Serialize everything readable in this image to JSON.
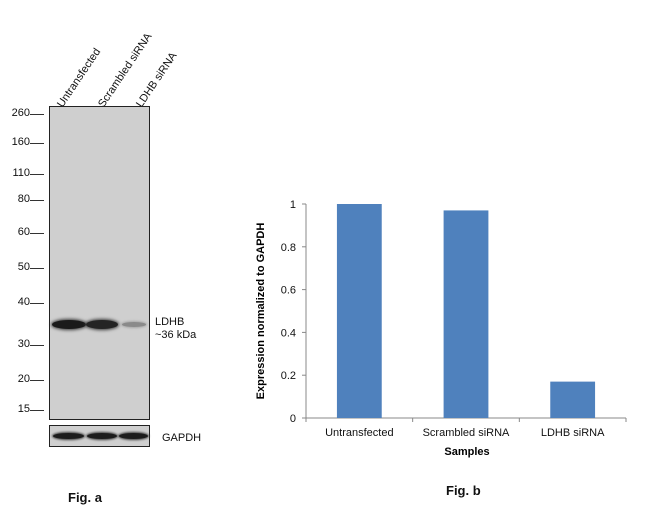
{
  "fig_a": {
    "caption": "Fig. a",
    "lanes": [
      "Untransfected",
      "Scrambled siRNA",
      "LDHB siRNA"
    ],
    "mw_markers": [
      "260",
      "160",
      "110",
      "80",
      "60",
      "50",
      "40",
      "30",
      "20",
      "15"
    ],
    "band_label_line1": "LDHB",
    "band_label_line2": "~36 kDa",
    "loading_control": "GAPDH",
    "band_intensity": [
      1.0,
      0.97,
      0.4
    ]
  },
  "fig_b": {
    "caption": "Fig. b"
  },
  "chart_data": {
    "type": "bar",
    "categories": [
      "Untransfected",
      "Scrambled siRNA",
      "LDHB siRNA"
    ],
    "values": [
      1.0,
      0.97,
      0.17
    ],
    "xlabel": "Samples",
    "ylabel": "Expression normalized to GAPDH",
    "ylim": [
      0,
      1
    ],
    "yticks": [
      "0",
      "0.2",
      "0.4",
      "0.6",
      "0.8",
      "1"
    ],
    "bar_color": "#4f81bd",
    "grid": false
  }
}
